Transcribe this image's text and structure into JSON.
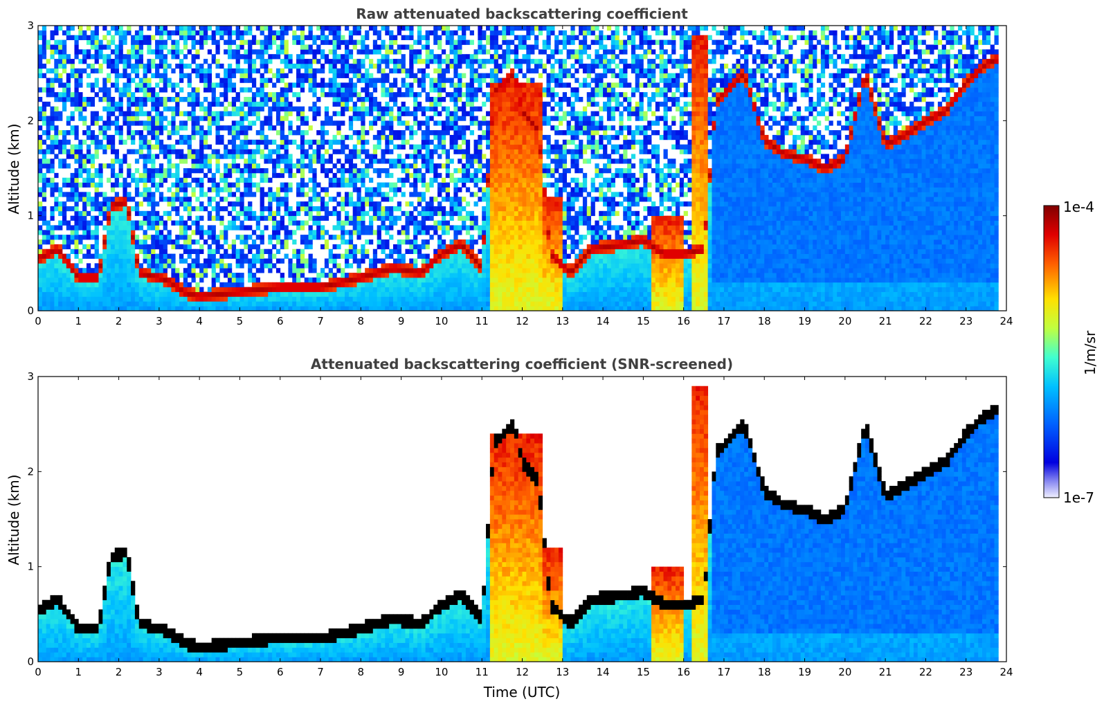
{
  "chart_data": [
    {
      "type": "heatmap",
      "title": "Raw attenuated backscattering coefficient",
      "xlabel": "",
      "ylabel": "Altitude (km)",
      "xlim": [
        0,
        24
      ],
      "ylim": [
        0,
        3
      ],
      "xticks": [
        "0",
        "1",
        "2",
        "3",
        "4",
        "5",
        "6",
        "7",
        "8",
        "9",
        "10",
        "11",
        "12",
        "13",
        "14",
        "15",
        "16",
        "17",
        "18",
        "19",
        "20",
        "21",
        "22",
        "23",
        "24"
      ],
      "yticks": [
        "0",
        "1",
        "2",
        "3"
      ],
      "screened": false,
      "layer_top_km": [
        [
          0,
          0.55
        ],
        [
          0.5,
          0.65
        ],
        [
          1.0,
          0.35
        ],
        [
          1.5,
          0.35
        ],
        [
          1.8,
          1.1
        ],
        [
          2.2,
          1.15
        ],
        [
          2.5,
          0.4
        ],
        [
          3.0,
          0.35
        ],
        [
          3.3,
          0.3
        ],
        [
          3.6,
          0.2
        ],
        [
          4.0,
          0.15
        ],
        [
          5.0,
          0.2
        ],
        [
          6.0,
          0.25
        ],
        [
          7.0,
          0.25
        ],
        [
          8.0,
          0.35
        ],
        [
          8.8,
          0.45
        ],
        [
          9.5,
          0.4
        ],
        [
          10.0,
          0.6
        ],
        [
          10.5,
          0.7
        ],
        [
          11.0,
          0.45
        ],
        [
          11.3,
          2.3
        ],
        [
          11.8,
          2.5
        ],
        [
          12.0,
          2.1
        ],
        [
          12.4,
          1.9
        ],
        [
          12.7,
          0.6
        ],
        [
          13.2,
          0.4
        ],
        [
          13.7,
          0.65
        ],
        [
          14.5,
          0.7
        ],
        [
          15.0,
          0.75
        ],
        [
          15.5,
          0.6
        ],
        [
          16.0,
          0.6
        ],
        [
          16.5,
          0.65
        ],
        [
          16.8,
          2.2
        ],
        [
          17.5,
          2.5
        ],
        [
          18.0,
          1.8
        ],
        [
          18.5,
          1.65
        ],
        [
          19.0,
          1.6
        ],
        [
          19.5,
          1.5
        ],
        [
          20.0,
          1.6
        ],
        [
          20.5,
          2.5
        ],
        [
          21.0,
          1.75
        ],
        [
          21.5,
          1.85
        ],
        [
          22.0,
          2.0
        ],
        [
          22.5,
          2.1
        ],
        [
          23.0,
          2.4
        ],
        [
          23.5,
          2.6
        ],
        [
          23.8,
          2.65
        ]
      ],
      "columns_tall": [
        [
          11.2,
          12.5,
          2.4
        ],
        [
          12.5,
          13.0,
          1.2
        ],
        [
          15.2,
          16.0,
          1.0
        ],
        [
          16.2,
          16.6,
          2.9
        ]
      ]
    },
    {
      "type": "heatmap",
      "title": "Attenuated backscattering coefficient (SNR-screened)",
      "xlabel": "Time (UTC)",
      "ylabel": "Altitude (km)",
      "xlim": [
        0,
        24
      ],
      "ylim": [
        0,
        3
      ],
      "xticks": [
        "0",
        "1",
        "2",
        "3",
        "4",
        "5",
        "6",
        "7",
        "8",
        "9",
        "10",
        "11",
        "12",
        "13",
        "14",
        "15",
        "16",
        "17",
        "18",
        "19",
        "20",
        "21",
        "22",
        "23",
        "24"
      ],
      "yticks": [
        "0",
        "1",
        "2",
        "3"
      ],
      "screened": true
    }
  ],
  "colorbar": {
    "label": "1/m/sr",
    "max_label": "1e-4",
    "min_label": "1e-7",
    "colormap": "jet",
    "scale": "log",
    "range": [
      1e-07,
      0.0001
    ]
  },
  "colors": {
    "jet_stops": [
      "#f0f0ff",
      "#0000c8",
      "#0050ff",
      "#00b4ff",
      "#40ffc0",
      "#c0ff40",
      "#ffd000",
      "#ff5000",
      "#c00000",
      "#800000"
    ],
    "layer_screened": "#000000"
  }
}
